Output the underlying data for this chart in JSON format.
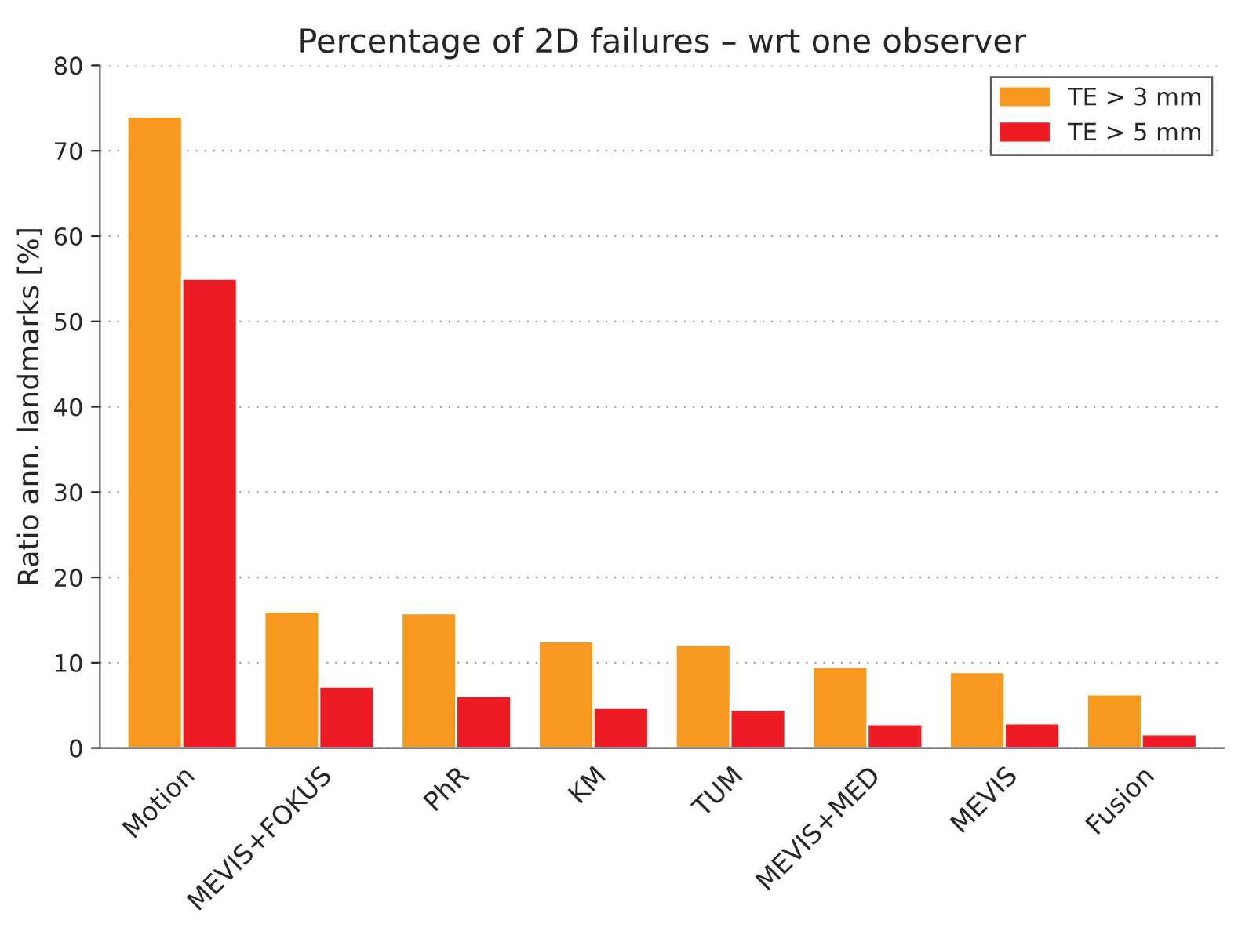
{
  "chart_data": {
    "type": "bar",
    "title": "Percentage of 2D failures – wrt one observer",
    "ylabel": "Ratio ann. landmarks [%]",
    "categories": [
      "Motion",
      "MEVIS+FOKUS",
      "PhR",
      "KM",
      "TUM",
      "MEVIS+MED",
      "MEVIS",
      "Fusion"
    ],
    "series": [
      {
        "name": "TE > 3 mm",
        "color": "#f7991f",
        "values": [
          74,
          16,
          15.8,
          12.5,
          12.1,
          9.5,
          8.9,
          6.3
        ]
      },
      {
        "name": "TE > 5 mm",
        "color": "#ed1c24",
        "values": [
          55,
          7.2,
          6.1,
          4.7,
          4.5,
          2.8,
          2.9,
          1.6
        ]
      }
    ],
    "ylim": [
      0,
      80
    ],
    "yticks": [
      0,
      10,
      20,
      30,
      40,
      50,
      60,
      70,
      80
    ],
    "grid": "y",
    "legend": "top right"
  }
}
